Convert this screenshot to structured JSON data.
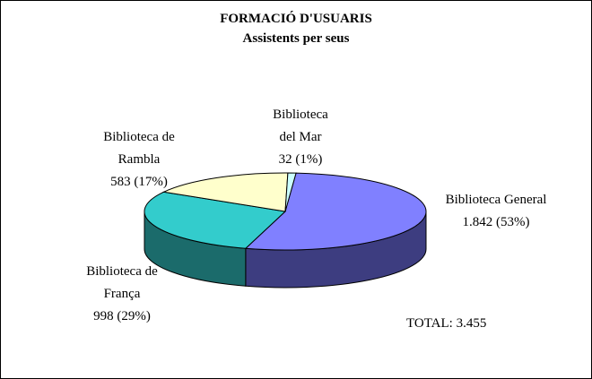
{
  "chart_data": {
    "type": "pie",
    "title": "FORMACIÓ D'USUARIS",
    "subtitle": "Assistents per seus",
    "slices": [
      {
        "label_lines": [
          "Biblioteca General",
          "1.842 (53%)"
        ],
        "value": 1842,
        "percent": 53,
        "color": "#8080ff",
        "side_color": "#3d3d80"
      },
      {
        "label_lines": [
          "Biblioteca de",
          "França",
          "998 (29%)"
        ],
        "value": 998,
        "percent": 29,
        "color": "#33cccc",
        "side_color": "#1b6b6b"
      },
      {
        "label_lines": [
          "Biblioteca de",
          "Rambla",
          "583 (17%)"
        ],
        "value": 583,
        "percent": 17,
        "color": "#ffffcc",
        "side_color": "#8a8a66"
      },
      {
        "label_lines": [
          "Biblioteca",
          "del Mar",
          "32 (1%)"
        ],
        "value": 32,
        "percent": 1,
        "color": "#ccffff",
        "side_color": "#6e8a8a"
      }
    ],
    "total": "TOTAL: 3.455",
    "legend": "none"
  }
}
